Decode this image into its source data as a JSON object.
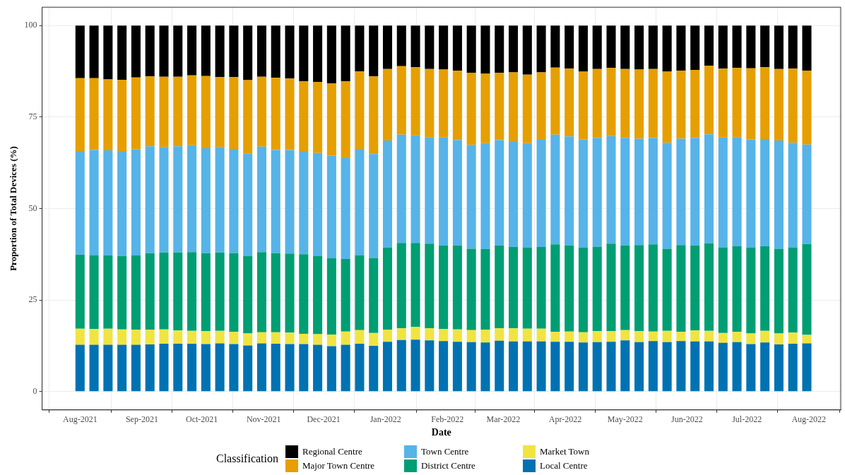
{
  "chart_data": {
    "type": "bar",
    "stacked": true,
    "xlabel": "Date",
    "ylabel": "Proportion of Total Devices (%)",
    "legend_title": "Classification",
    "legend": "bottom",
    "grid": true,
    "x": [
      "2021-08-01",
      "2021-08-08",
      "2021-08-15",
      "2021-08-22",
      "2021-08-29",
      "2021-09-05",
      "2021-09-12",
      "2021-09-19",
      "2021-09-26",
      "2021-10-03",
      "2021-10-10",
      "2021-10-17",
      "2021-10-24",
      "2021-10-31",
      "2021-11-07",
      "2021-11-14",
      "2021-11-21",
      "2021-11-28",
      "2021-12-05",
      "2021-12-12",
      "2021-12-19",
      "2021-12-26",
      "2022-01-02",
      "2022-01-09",
      "2022-01-16",
      "2022-01-23",
      "2022-01-30",
      "2022-02-06",
      "2022-02-13",
      "2022-02-20",
      "2022-02-27",
      "2022-03-06",
      "2022-03-13",
      "2022-03-20",
      "2022-03-27",
      "2022-04-03",
      "2022-04-10",
      "2022-04-17",
      "2022-04-24",
      "2022-05-01",
      "2022-05-08",
      "2022-05-15",
      "2022-05-22",
      "2022-05-29",
      "2022-06-05",
      "2022-06-12",
      "2022-06-19",
      "2022-06-26",
      "2022-07-03",
      "2022-07-10",
      "2022-07-17",
      "2022-07-24",
      "2022-07-31"
    ],
    "xlim": [
      "2021-07-13",
      "2022-08-17"
    ],
    "xticks": [
      {
        "value": "2021-08-01",
        "label": "Aug-2021"
      },
      {
        "value": "2021-09-01",
        "label": "Sep-2021"
      },
      {
        "value": "2021-10-01",
        "label": "Oct-2021"
      },
      {
        "value": "2021-11-01",
        "label": "Nov-2021"
      },
      {
        "value": "2021-12-01",
        "label": "Dec-2021"
      },
      {
        "value": "2022-01-01",
        "label": "Jan-2022"
      },
      {
        "value": "2022-02-01",
        "label": "Feb-2022"
      },
      {
        "value": "2022-03-01",
        "label": "Mar-2022"
      },
      {
        "value": "2022-04-01",
        "label": "Apr-2022"
      },
      {
        "value": "2022-05-01",
        "label": "May-2022"
      },
      {
        "value": "2022-06-01",
        "label": "Jun-2022"
      },
      {
        "value": "2022-07-01",
        "label": "Jul-2022"
      },
      {
        "value": "2022-08-01",
        "label": "Aug-2022"
      }
    ],
    "ylim": [
      -5,
      105
    ],
    "yticks": [
      0,
      25,
      50,
      75,
      100
    ],
    "series": [
      {
        "name": "Local Centre",
        "color": "#0072b2",
        "values": [
          12.8,
          12.8,
          12.8,
          12.8,
          12.8,
          12.9,
          13.1,
          13.1,
          13.1,
          13.0,
          13.2,
          13.0,
          12.6,
          13.2,
          13.1,
          13.0,
          13.0,
          12.8,
          12.4,
          12.8,
          13.1,
          12.5,
          13.6,
          14.1,
          14.2,
          14.0,
          13.8,
          13.6,
          13.5,
          13.4,
          13.9,
          13.7,
          13.7,
          13.7,
          13.6,
          13.6,
          13.4,
          13.5,
          13.6,
          14.0,
          13.5,
          13.8,
          13.5,
          13.8,
          13.7,
          13.7,
          13.3,
          13.5,
          13.0,
          13.4,
          12.9,
          13.1,
          13.2
        ]
      },
      {
        "name": "Market Town",
        "color": "#f0e442",
        "values": [
          4.4,
          4.3,
          4.4,
          4.2,
          4.1,
          4.0,
          3.9,
          3.6,
          3.5,
          3.5,
          3.4,
          3.3,
          3.3,
          3.0,
          3.1,
          3.1,
          2.8,
          2.9,
          3.2,
          3.6,
          3.7,
          3.5,
          3.3,
          3.2,
          3.5,
          3.3,
          3.3,
          3.4,
          3.3,
          3.5,
          3.4,
          3.6,
          3.5,
          3.5,
          2.7,
          2.8,
          2.8,
          3.0,
          2.9,
          2.8,
          3.0,
          2.6,
          3.1,
          2.5,
          3.0,
          2.9,
          2.7,
          2.8,
          2.9,
          3.2,
          3.0,
          3.0,
          2.3
        ]
      },
      {
        "name": "District Centre",
        "color": "#009e73",
        "values": [
          20.2,
          20.2,
          20.0,
          20.0,
          20.3,
          20.9,
          21.0,
          21.3,
          21.5,
          21.3,
          21.4,
          21.5,
          21.1,
          21.9,
          21.6,
          21.6,
          21.7,
          21.4,
          20.8,
          19.8,
          20.5,
          20.5,
          22.4,
          23.3,
          22.9,
          23.1,
          22.8,
          22.9,
          22.2,
          22.0,
          22.6,
          22.2,
          22.2,
          22.3,
          23.9,
          23.5,
          23.1,
          23.1,
          23.9,
          23.1,
          23.5,
          23.8,
          22.4,
          23.7,
          23.2,
          23.9,
          23.4,
          23.4,
          23.5,
          23.1,
          23.1,
          23.3,
          24.8
        ]
      },
      {
        "name": "Town Centre",
        "color": "#56b4e9",
        "values": [
          28.3,
          28.7,
          28.7,
          28.7,
          29.0,
          29.2,
          28.8,
          29.0,
          29.2,
          28.7,
          28.8,
          28.5,
          28.0,
          28.8,
          28.2,
          28.3,
          28.2,
          28.1,
          28.0,
          27.6,
          29.0,
          28.4,
          29.3,
          29.6,
          29.4,
          29.1,
          29.5,
          28.8,
          28.4,
          29.0,
          28.8,
          28.9,
          28.5,
          29.3,
          30.0,
          29.8,
          29.6,
          29.7,
          29.4,
          29.4,
          29.1,
          29.1,
          29.0,
          29.1,
          29.4,
          29.8,
          30.0,
          29.8,
          29.5,
          29.3,
          29.6,
          28.6,
          27.2
        ]
      },
      {
        "name": "Major Town Centre",
        "color": "#e69f00",
        "values": [
          19.9,
          19.6,
          19.4,
          19.5,
          19.6,
          19.1,
          19.2,
          19.0,
          19.1,
          19.7,
          19.1,
          19.6,
          20.1,
          19.1,
          19.7,
          19.5,
          19.1,
          19.4,
          19.8,
          21.0,
          21.2,
          21.2,
          19.5,
          18.7,
          18.6,
          18.6,
          18.6,
          19.0,
          19.7,
          18.9,
          18.4,
          18.8,
          18.7,
          18.4,
          18.3,
          18.5,
          18.5,
          18.8,
          18.6,
          18.8,
          18.9,
          18.8,
          19.4,
          18.6,
          18.6,
          18.7,
          18.8,
          18.9,
          19.4,
          19.6,
          19.5,
          20.2,
          20.2
        ]
      },
      {
        "name": "Regional Centre",
        "color": "#000000",
        "values": [
          14.4,
          14.4,
          14.7,
          14.8,
          14.2,
          13.9,
          14.0,
          14.0,
          13.6,
          13.8,
          14.1,
          14.1,
          14.9,
          14.0,
          14.3,
          14.5,
          15.2,
          15.4,
          15.8,
          15.2,
          12.5,
          13.9,
          11.9,
          11.1,
          11.4,
          11.9,
          12.0,
          12.3,
          12.9,
          13.2,
          12.9,
          12.8,
          13.4,
          12.8,
          11.5,
          11.8,
          12.6,
          11.9,
          11.6,
          11.9,
          12.0,
          11.9,
          12.6,
          12.3,
          12.1,
          11.0,
          11.8,
          11.6,
          11.7,
          11.4,
          11.9,
          11.8,
          12.3
        ]
      }
    ]
  }
}
